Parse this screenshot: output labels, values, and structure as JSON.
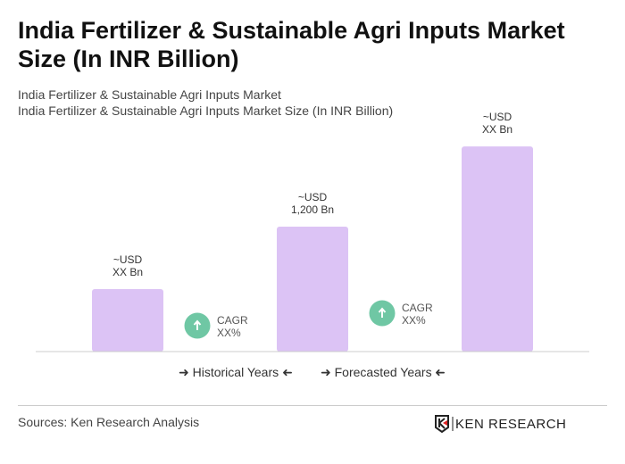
{
  "title": "India Fertilizer & Sustainable Agri Inputs Market Size (In INR Billion)",
  "subtitle1": "India Fertilizer & Sustainable Agri Inputs Market",
  "subtitle2": "India Fertilizer & Sustainable Agri Inputs Market Size (In INR Billion)",
  "chart_data": {
    "type": "bar",
    "values": [
      600,
      1200,
      1970
    ],
    "data_labels": [
      [
        "~USD",
        "XX Bn"
      ],
      [
        "~USD",
        "1,200 Bn"
      ],
      [
        "~USD",
        "XX Bn"
      ]
    ],
    "cagr": [
      [
        "CAGR",
        "XX%"
      ],
      [
        "CAGR",
        "XX%"
      ]
    ],
    "bar_color": "#dcc3f5",
    "cagr_color": "#6fc7a4",
    "legend": [
      "Historical Years",
      "Forecasted Years"
    ]
  },
  "source": "Sources: Ken Research Analysis",
  "logo_text": "KEN RESEARCH"
}
